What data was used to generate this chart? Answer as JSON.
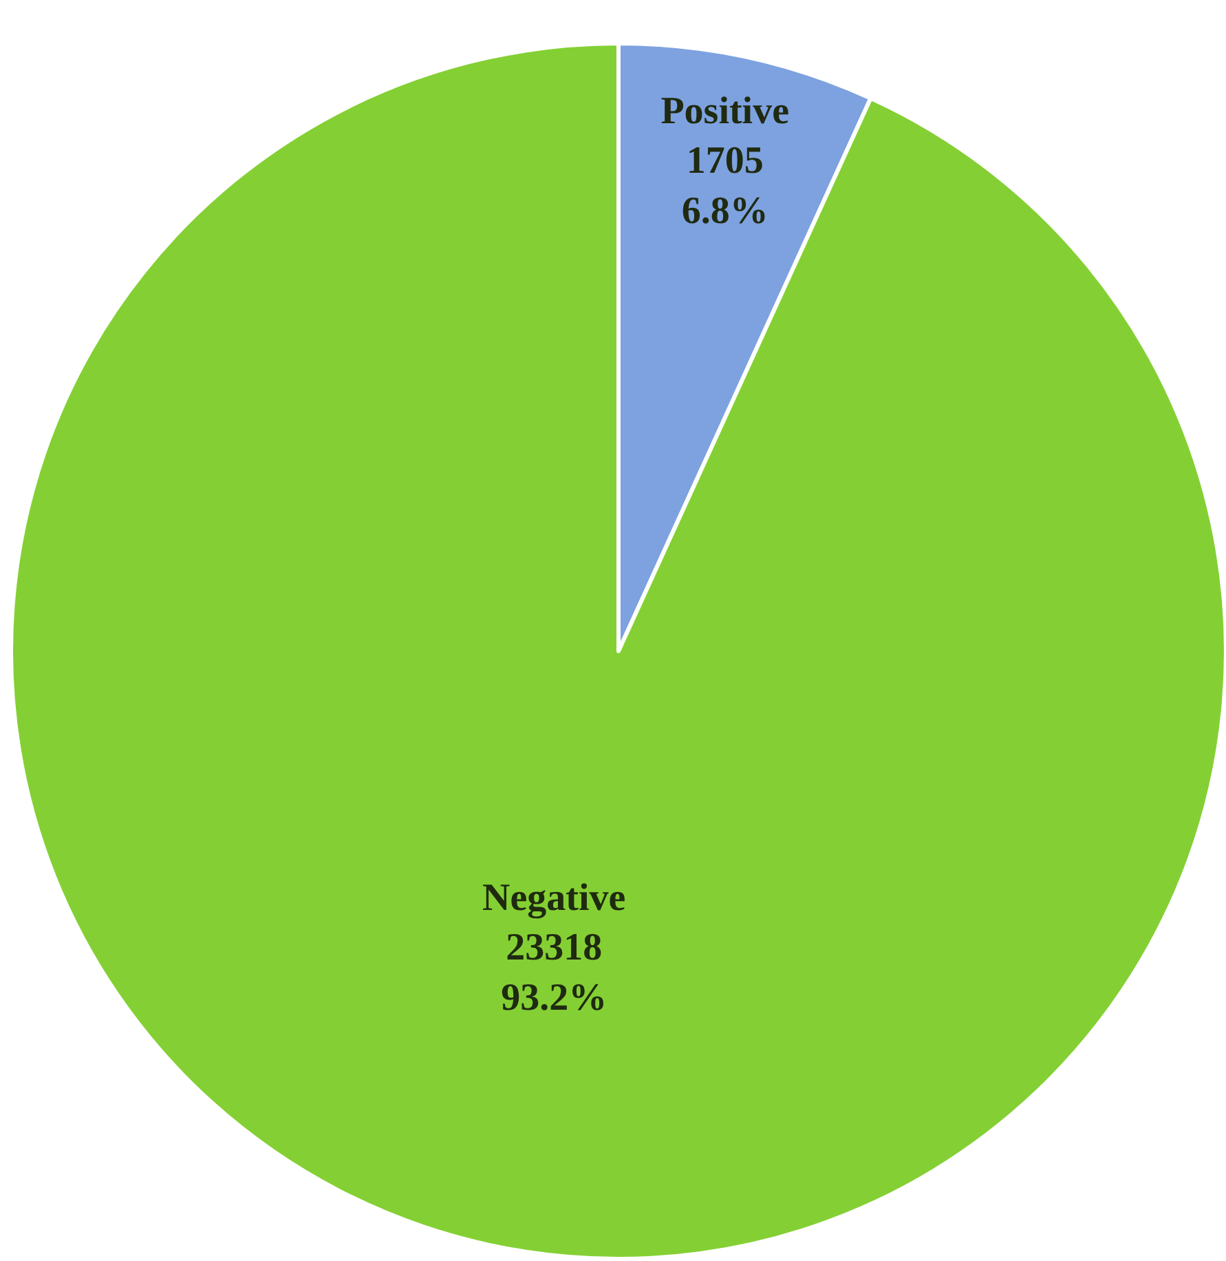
{
  "chart_data": {
    "type": "pie",
    "categories": [
      "Positive",
      "Negative"
    ],
    "values": [
      1705,
      23318
    ],
    "colors": [
      "#7ea2e0",
      "#84d034"
    ],
    "value_labels": [
      "1705\n6.8%",
      "23318\n93.2%"
    ],
    "legend": false
  }
}
